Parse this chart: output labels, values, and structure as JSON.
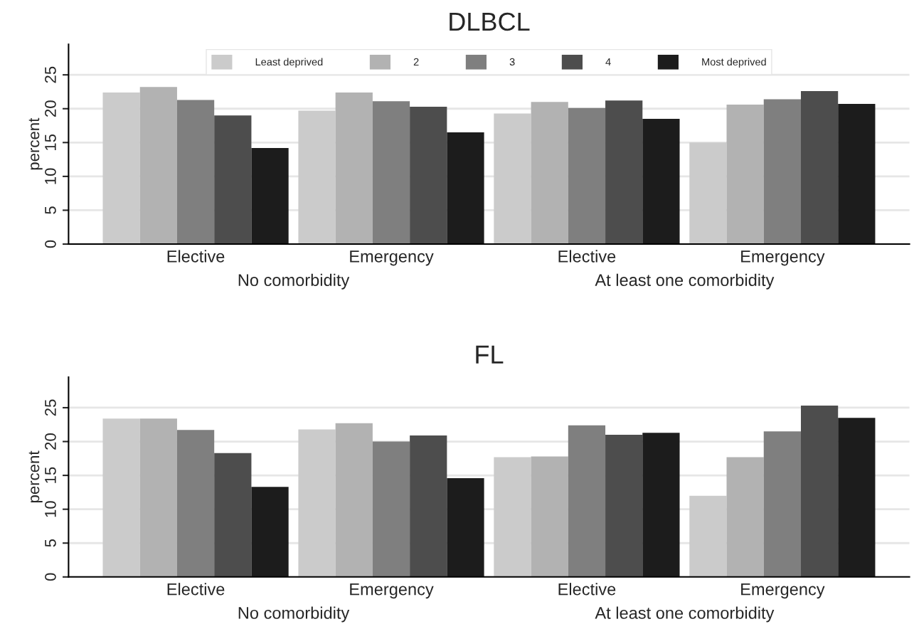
{
  "chart_data": [
    {
      "type": "bar",
      "title": "DLBCL",
      "ylabel": "percent",
      "categories": [
        "Elective",
        "Emergency",
        "Elective",
        "Emergency"
      ],
      "annotations": [
        "No comorbidity",
        "At least one comorbidity"
      ],
      "series": [
        {
          "name": "Least deprived",
          "color": "#cbcbcb",
          "values": [
            22.4,
            19.7,
            19.3,
            15.0
          ]
        },
        {
          "name": "2",
          "color": "#b2b2b2",
          "values": [
            23.2,
            22.4,
            21.0,
            20.6
          ]
        },
        {
          "name": "3",
          "color": "#7f7f7f",
          "values": [
            21.3,
            21.1,
            20.1,
            21.4
          ]
        },
        {
          "name": "4",
          "color": "#4d4d4d",
          "values": [
            19.0,
            20.3,
            21.2,
            22.6
          ]
        },
        {
          "name": "Most deprived",
          "color": "#1c1c1c",
          "values": [
            14.2,
            16.5,
            18.5,
            20.7
          ]
        }
      ],
      "ylim": [
        0,
        29.5
      ],
      "yticks": [
        0,
        5,
        10,
        15,
        20,
        25
      ],
      "grid": "y",
      "legend": "top"
    },
    {
      "type": "bar",
      "title": "FL",
      "ylabel": "percent",
      "categories": [
        "Elective",
        "Emergency",
        "Elective",
        "Emergency"
      ],
      "annotations": [
        "No comorbidity",
        "At least one comorbidity"
      ],
      "series": [
        {
          "color": "#cbcbcb",
          "values": [
            23.4,
            21.8,
            17.7,
            12.0
          ]
        },
        {
          "color": "#b2b2b2",
          "values": [
            23.4,
            22.7,
            17.8,
            17.7
          ]
        },
        {
          "color": "#7f7f7f",
          "values": [
            21.7,
            20.0,
            22.4,
            21.5
          ]
        },
        {
          "color": "#4d4d4d",
          "values": [
            18.3,
            20.9,
            21.0,
            25.3
          ]
        },
        {
          "color": "#1c1c1c",
          "values": [
            13.3,
            14.6,
            21.3,
            23.5
          ]
        }
      ],
      "ylim": [
        0,
        29.5
      ],
      "yticks": [
        0,
        5,
        10,
        15,
        20,
        25
      ],
      "grid": "y"
    }
  ]
}
